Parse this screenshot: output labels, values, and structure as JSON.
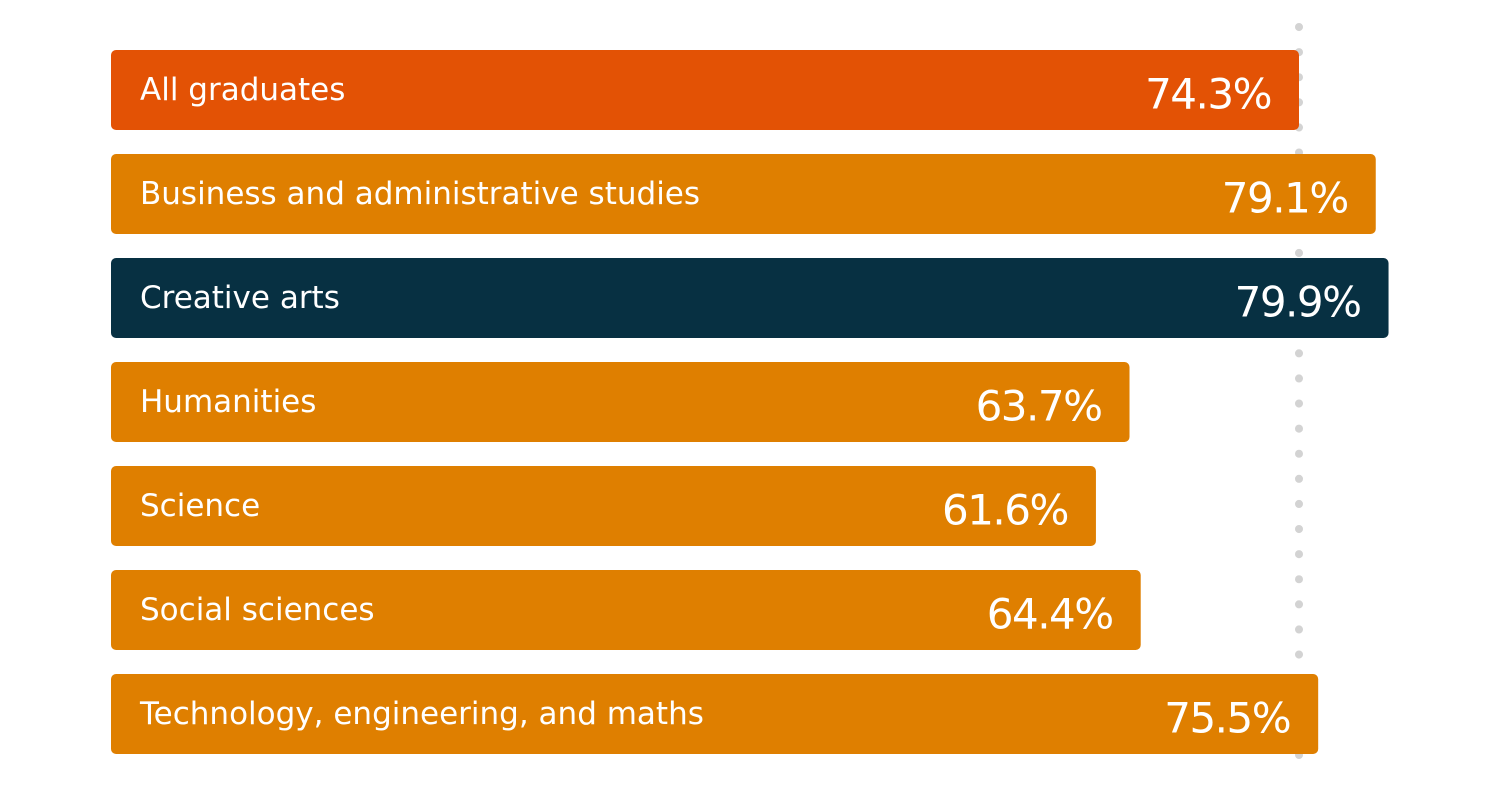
{
  "chart_data": {
    "type": "bar",
    "orientation": "horizontal",
    "categories": [
      "All graduates",
      "Business and administrative studies",
      "Creative arts",
      "Humanities",
      "Science",
      "Social sciences",
      "Technology, engineering, and maths"
    ],
    "values": [
      74.3,
      79.1,
      79.9,
      63.7,
      61.6,
      64.4,
      75.5
    ],
    "value_labels": [
      "74.3%",
      "79.1%",
      "79.9%",
      "63.7%",
      "61.6%",
      "64.4%",
      "75.5%"
    ],
    "bar_colors": [
      "#e35205",
      "#df7f00",
      "#073042",
      "#df7f00",
      "#df7f00",
      "#df7f00",
      "#df7f00"
    ],
    "reference_line": {
      "value": 74.3,
      "style": "dotted",
      "color": "#d3d3d3"
    },
    "xlim": [
      0,
      80
    ],
    "title": "",
    "xlabel": "",
    "ylabel": "",
    "grid": false,
    "legend": "none"
  }
}
